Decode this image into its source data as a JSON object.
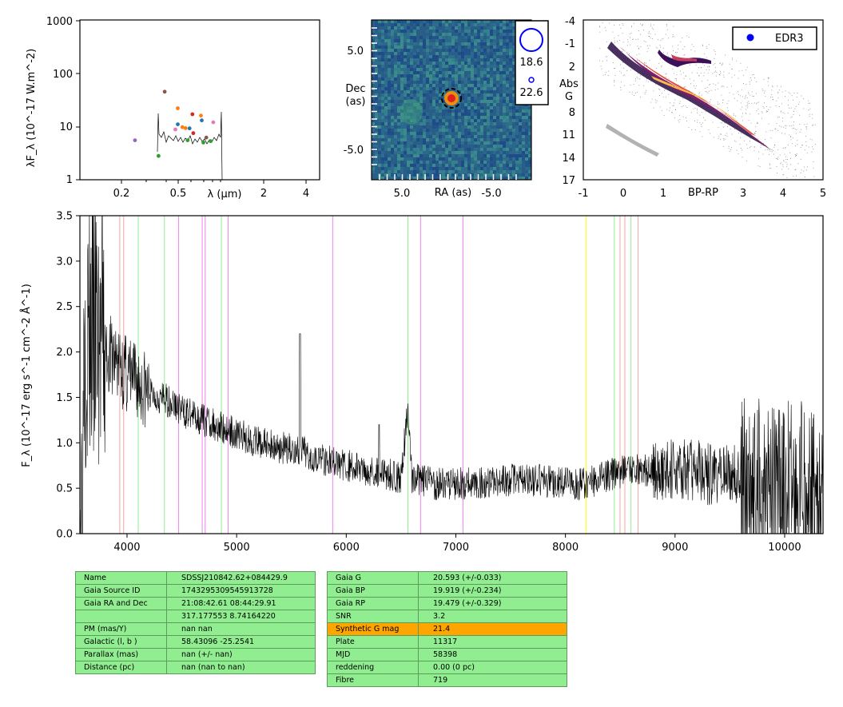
{
  "sed": {
    "ylabel": "λF_λ (10^-17 W.m^-2)",
    "xlabel": "λ (μm)",
    "yticks": [
      "1",
      "10",
      "100",
      "1000"
    ],
    "xticks": [
      "0.2",
      "0.5",
      "2",
      "4"
    ],
    "points": [
      {
        "x": 0.25,
        "y": 5.5,
        "color": "#9467bd"
      },
      {
        "x": 0.37,
        "y": 2.8,
        "color": "#2ca02c"
      },
      {
        "x": 0.41,
        "y": 45,
        "color": "#8c564b"
      },
      {
        "x": 0.49,
        "y": 8.8,
        "color": "#e377c2"
      },
      {
        "x": 0.51,
        "y": 22,
        "color": "#ff7f0e"
      },
      {
        "x": 0.51,
        "y": 11,
        "color": "#1f77b4"
      },
      {
        "x": 0.55,
        "y": 9.7,
        "color": "#ff7f0e"
      },
      {
        "x": 0.58,
        "y": 9.3,
        "color": "#ff7f0e"
      },
      {
        "x": 0.6,
        "y": 5.5,
        "color": "#2ca02c"
      },
      {
        "x": 0.62,
        "y": 9.2,
        "color": "#1f77b4"
      },
      {
        "x": 0.65,
        "y": 17,
        "color": "#d62728"
      },
      {
        "x": 0.66,
        "y": 7.5,
        "color": "#d62728"
      },
      {
        "x": 0.75,
        "y": 16,
        "color": "#ff7f0e"
      },
      {
        "x": 0.76,
        "y": 13,
        "color": "#1f77b4"
      },
      {
        "x": 0.78,
        "y": 5.0,
        "color": "#2ca02c"
      },
      {
        "x": 0.82,
        "y": 6.2,
        "color": "#8c564b"
      },
      {
        "x": 0.88,
        "y": 5.3,
        "color": "#2ca02c"
      },
      {
        "x": 0.92,
        "y": 12,
        "color": "#e377c2"
      }
    ]
  },
  "img": {
    "ylabel": "Dec (as)",
    "xlabel": "RA (as)",
    "yticks": [
      "5.0",
      "-5.0"
    ],
    "xticks": [
      "5.0",
      "-5.0"
    ],
    "legend": [
      "18.6",
      "22.6"
    ]
  },
  "cmd": {
    "xlabel": "BP-RP",
    "ylabel": "Abs G",
    "yticks": [
      "-4",
      "-1",
      "2",
      "5",
      "8",
      "11",
      "14",
      "17"
    ],
    "xticks": [
      "-1",
      "0",
      "1",
      "2",
      "3",
      "4",
      "5"
    ],
    "legend": "EDR3"
  },
  "chart_data": {
    "type": "line",
    "ylabel": "F_λ (10^-17 erg s^-1 cm^-2 Å^-1)",
    "xlim": [
      3570,
      10350
    ],
    "ylim": [
      0,
      3.5
    ],
    "xticks": [
      "4000",
      "5000",
      "6000",
      "7000",
      "8000",
      "9000",
      "10000"
    ],
    "yticks": [
      "0.0",
      "0.5",
      "1.0",
      "1.5",
      "2.0",
      "2.5",
      "3.0",
      "3.5"
    ],
    "series": [
      {
        "x": [
          3600,
          3700,
          3800,
          3900,
          4000,
          4100,
          4200,
          4300,
          4400,
          4500,
          4600,
          4700,
          4800,
          4900,
          5000,
          5200,
          5400,
          5600,
          5800,
          6000,
          6200,
          6400,
          6500,
          6565,
          6600,
          6800,
          7000,
          7200,
          7400,
          7600,
          7800,
          8000,
          8200,
          8400,
          8600,
          8800,
          9000,
          9200,
          9400,
          9600,
          9800,
          10000,
          10200,
          10350
        ],
        "y": [
          2.3,
          2.2,
          2.0,
          1.9,
          1.75,
          1.65,
          1.55,
          1.5,
          1.45,
          1.35,
          1.3,
          1.25,
          1.2,
          1.15,
          1.1,
          1.0,
          0.95,
          0.9,
          0.82,
          0.75,
          0.7,
          0.65,
          0.62,
          1.4,
          0.6,
          0.55,
          0.55,
          0.55,
          0.58,
          0.6,
          0.58,
          0.55,
          0.55,
          0.65,
          0.7,
          0.7,
          0.7,
          0.68,
          0.65,
          0.62,
          0.6,
          0.6,
          0.55,
          0.6
        ]
      }
    ],
    "lines": [
      {
        "x": 3934,
        "color": "#f4a6a6"
      },
      {
        "x": 3969,
        "color": "#f4a6a6"
      },
      {
        "x": 4102,
        "color": "#90ee90"
      },
      {
        "x": 4341,
        "color": "#90ee90"
      },
      {
        "x": 4471,
        "color": "#ee82ee"
      },
      {
        "x": 4686,
        "color": "#ee82ee"
      },
      {
        "x": 4713,
        "color": "#ee82ee"
      },
      {
        "x": 4861,
        "color": "#90ee90"
      },
      {
        "x": 4922,
        "color": "#ee82ee"
      },
      {
        "x": 5876,
        "color": "#ee82ee"
      },
      {
        "x": 6563,
        "color": "#90ee90"
      },
      {
        "x": 6678,
        "color": "#ee82ee"
      },
      {
        "x": 7065,
        "color": "#ee82ee"
      },
      {
        "x": 8190,
        "color": "#ffff00"
      },
      {
        "x": 8446,
        "color": "#90ee90"
      },
      {
        "x": 8498,
        "color": "#f4a6a6"
      },
      {
        "x": 8542,
        "color": "#f4a6a6"
      },
      {
        "x": 8598,
        "color": "#90ee90"
      },
      {
        "x": 8662,
        "color": "#f4a6a6"
      }
    ]
  },
  "table1": [
    [
      "Name",
      "SDSSJ210842.62+084429.9"
    ],
    [
      "Gaia Source ID",
      "1743295309545913728"
    ],
    [
      "Gaia RA and Dec",
      "21:08:42.61    08:44:29.91"
    ],
    [
      "",
      "317.177553    8.74164220"
    ],
    [
      "PM (mas/Y)",
      "nan    nan"
    ],
    [
      "Galactic (l, b )",
      "58.43096    -25.2541"
    ],
    [
      "Parallax (mas)",
      "nan (+/- nan)"
    ],
    [
      "Distance (pc)",
      "nan (nan to nan)"
    ]
  ],
  "table2": [
    [
      "Gaia G",
      "20.593 (+/-0.033)"
    ],
    [
      "Gaia BP",
      "19.919 (+/-0.234)"
    ],
    [
      "Gaia RP",
      "19.479 (+/-0.329)"
    ],
    [
      "SNR",
      "3.2"
    ],
    [
      "Synthetic G mag",
      "21.4"
    ],
    [
      "Plate",
      "11317"
    ],
    [
      "MJD",
      "58398"
    ],
    [
      "reddening",
      "0.00 (0 pc)"
    ],
    [
      "Fibre",
      "719"
    ]
  ],
  "colors": {
    "cell": "#90ee90",
    "highlight": "#ffa500",
    "legend_dot": "#0000ff"
  }
}
